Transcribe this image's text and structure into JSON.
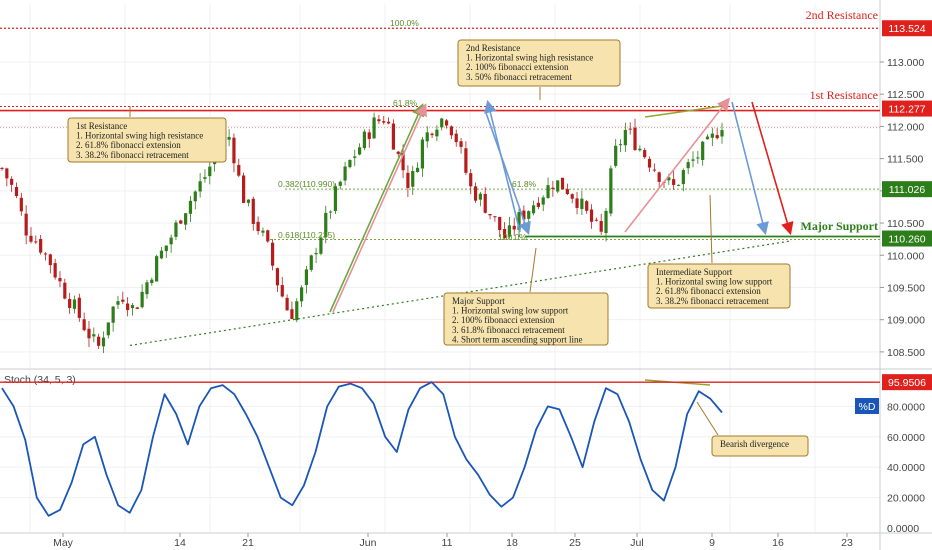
{
  "chart_data": {
    "type": "candlestick",
    "price_axis": {
      "ticks": [
        "113.000",
        "112.500",
        "112.000",
        "111.500",
        "111.000",
        "110.500",
        "110.000",
        "109.500",
        "109.000",
        "108.500"
      ],
      "range": [
        108.25,
        113.9
      ]
    },
    "time_axis": {
      "ticks": [
        "May",
        "14",
        "21",
        "Jun",
        "11",
        "18",
        "25",
        "Jul",
        "9",
        "16",
        "23"
      ]
    },
    "price_path_approx": [
      111.35,
      111.0,
      110.4,
      110.2,
      109.9,
      109.5,
      109.2,
      108.85,
      108.55,
      109.1,
      109.4,
      109.15,
      109.55,
      109.95,
      110.25,
      110.65,
      110.95,
      111.25,
      111.65,
      111.85,
      110.95,
      110.55,
      110.2,
      109.55,
      109.05,
      109.45,
      110.05,
      110.55,
      111.05,
      111.45,
      111.75,
      112.05,
      112.15,
      111.55,
      111.05,
      111.75,
      112.05,
      112.15,
      111.75,
      111.05,
      110.85,
      110.55,
      110.25,
      110.55,
      110.75,
      110.95,
      111.15,
      111.05,
      110.85,
      110.55,
      110.3,
      111.55,
      111.95,
      111.7,
      111.45,
      111.2,
      111.05,
      111.35,
      111.55,
      111.75,
      112.05
    ],
    "lines": {
      "second_resistance": {
        "label": "2nd Resistance",
        "price_tag": "113.524",
        "value": 113.524
      },
      "first_resistance": {
        "label": "1st Resistance",
        "price_tag": "112.277",
        "value": 112.277
      },
      "intermediate_support": {
        "price_tag": "111.026",
        "value": 111.026
      },
      "major_support": {
        "label": "Major Support",
        "price_tag": "110.260",
        "value": 110.26
      }
    },
    "fib_labels": [
      "100.0%",
      "61.8%",
      "0.382(110.990)",
      "0.618(110.235)",
      "100.0%",
      "61.8%"
    ],
    "annotations": [
      {
        "lines": [
          "2nd Resistance",
          "1. Horizontal swing high resistance",
          "2. 100% fibonacci extension",
          "3. 50% fibonacci retracement"
        ]
      },
      {
        "lines": [
          "1st Resistance",
          "1. Horizontal swing high resistance",
          "2. 61.8% fibonacci extension",
          "3. 38.2% fibonacci retracement"
        ]
      },
      {
        "lines": [
          "Major Support",
          "1. Horizontal swing low support",
          "2. 100% fibonacci extension",
          "3. 61.8% fibonacci retracement",
          "4. Short term ascending support line"
        ]
      },
      {
        "lines": [
          "Intermediate Support",
          "1. Horizontal swing low support",
          "2. 61.8% fibonacci extension",
          "3. 38.2% fibonacci retracement"
        ]
      },
      {
        "lines": [
          "Bearish divergence"
        ]
      }
    ],
    "oscillator": {
      "title": "Stoch (34, 5, 3)",
      "series_name": "%D",
      "ticks": [
        "80.0000",
        "60.0000",
        "40.0000",
        "20.0000",
        "0.0000"
      ],
      "resistance_tag": "95.9506",
      "resistance_value": 95.9506,
      "values_approx": [
        92,
        80,
        58,
        20,
        8,
        12,
        30,
        55,
        60,
        35,
        15,
        10,
        25,
        60,
        88,
        75,
        55,
        80,
        92,
        94,
        88,
        75,
        60,
        40,
        20,
        15,
        28,
        50,
        80,
        93,
        95,
        92,
        82,
        60,
        50,
        78,
        92,
        96,
        88,
        60,
        45,
        35,
        22,
        14,
        20,
        40,
        65,
        80,
        78,
        60,
        40,
        70,
        92,
        88,
        70,
        45,
        25,
        18,
        40,
        75,
        90,
        85,
        76
      ]
    }
  },
  "colors": {
    "candle_up": "#2e7d1b",
    "candle_down": "#b71c1c",
    "resistance": "#e0201c",
    "support": "#2e7d1b",
    "oscillator_line": "#1a56b8",
    "annotation_fill": "#f6e3ad",
    "annotation_border": "#a5782c",
    "fib_green": "#7aa83a",
    "arrow_blue": "#6b9ad6",
    "arrow_pink": "#e8909a"
  }
}
